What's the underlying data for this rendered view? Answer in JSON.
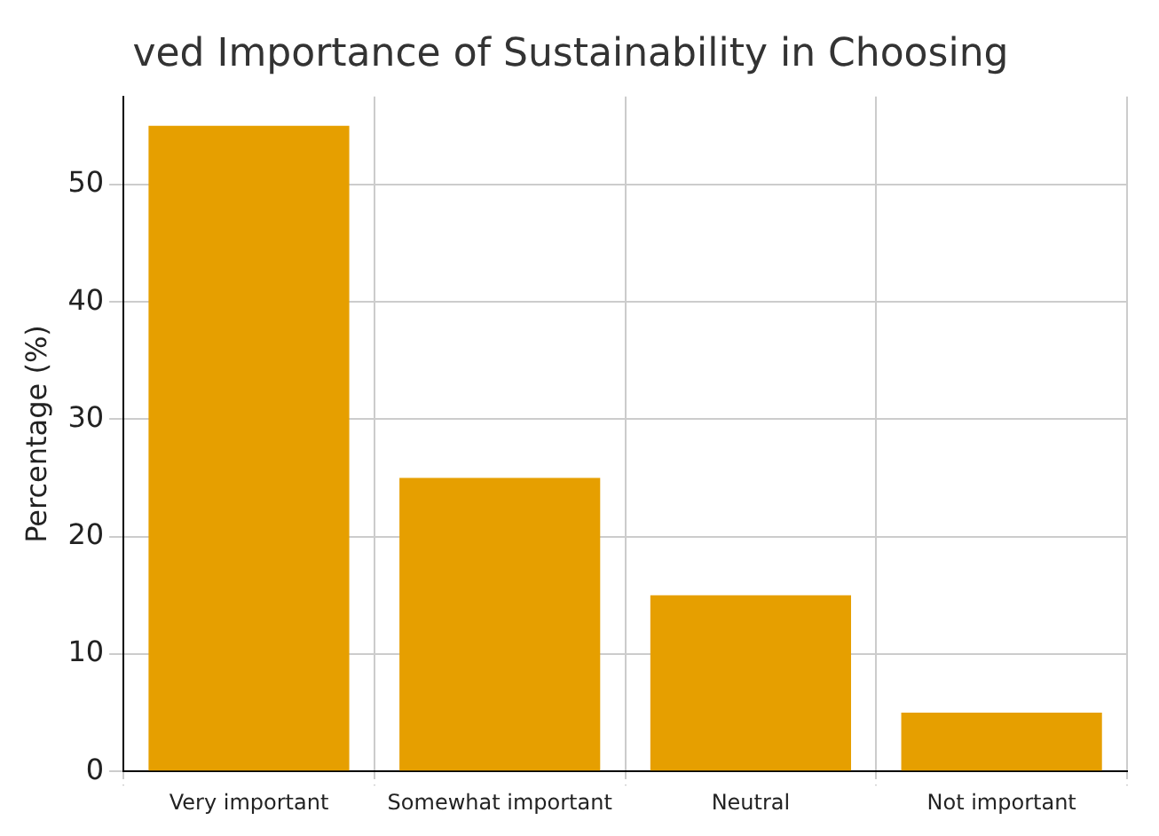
{
  "chart_data": {
    "type": "bar",
    "title": "ved Importance of Sustainability in Choosing",
    "ylabel": "Percentage (%)",
    "categories": [
      "Very important",
      "Somewhat important",
      "Neutral",
      "Not important"
    ],
    "values": [
      55,
      25,
      15,
      5
    ],
    "color": "#e69f00",
    "ylim": [
      0,
      57.5
    ],
    "yticks": [
      0,
      10,
      20,
      30,
      40,
      50
    ],
    "grid": true
  }
}
